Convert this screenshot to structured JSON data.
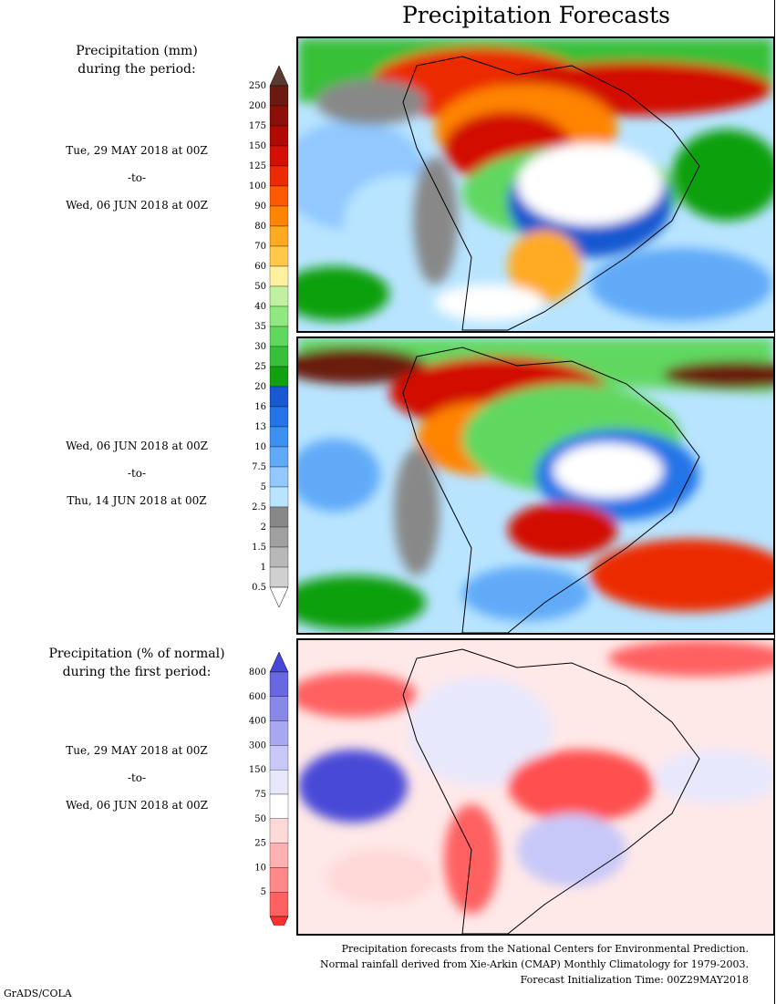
{
  "title": "Precipitation Forecasts",
  "section1": {
    "heading_line1": "Precipitation (mm)",
    "heading_line2": "during the period:",
    "period1_start": "Tue, 29 MAY 2018 at 00Z",
    "period1_to": "-to-",
    "period1_end": "Wed, 06 JUN 2018 at 00Z",
    "period2_start": "Wed, 06 JUN 2018 at 00Z",
    "period2_to": "-to-",
    "period2_end": "Thu, 14 JUN 2018 at 00Z"
  },
  "section2": {
    "heading_line1": "Precipitation (% of normal)",
    "heading_line2": "during the first period:",
    "period_start": "Tue, 29 MAY 2018 at 00Z",
    "period_to": "-to-",
    "period_end": "Wed, 06 JUN 2018 at 00Z"
  },
  "mm_scale": {
    "labels": [
      "250",
      "200",
      "175",
      "150",
      "125",
      "100",
      "90",
      "80",
      "70",
      "60",
      "50",
      "40",
      "35",
      "30",
      "25",
      "20",
      "16",
      "13",
      "10",
      "7.5",
      "5",
      "2.5",
      "2",
      "1.5",
      "1",
      "0.5"
    ],
    "colors": [
      "#6b1a10",
      "#8c1008",
      "#b00a05",
      "#d21005",
      "#ec2b05",
      "#ff5a00",
      "#ff8400",
      "#ffaa20",
      "#ffc84a",
      "#fff0a0",
      "#c0f0a0",
      "#90e880",
      "#60d860",
      "#38c038",
      "#10a010",
      "#1858d0",
      "#2474e8",
      "#3c90f0",
      "#60aaf8",
      "#90c8ff",
      "#b8e4ff",
      "#888888",
      "#a0a0a0",
      "#b8b8b8",
      "#d0d0d0"
    ],
    "top_color": "#5a3a30",
    "bottom_color": "#ffffff"
  },
  "pct_scale": {
    "labels": [
      "800",
      "600",
      "400",
      "300",
      "150",
      "75",
      "50",
      "25",
      "10",
      "5"
    ],
    "colors": [
      "#6868e0",
      "#8888e8",
      "#a8a8f0",
      "#c8c8f8",
      "#e8e8fc",
      "#ffffff",
      "#ffd8d8",
      "#ffb0b0",
      "#ff8888",
      "#ff6060"
    ],
    "top_color": "#4848d8",
    "bottom_color": "#ff3030"
  },
  "footer": {
    "line1": "Precipitation forecasts from the National Centers for Environmental Prediction.",
    "line2": "Normal rainfall derived from Xie-Arkin (CMAP) Monthly Climatology for 1979-2003.",
    "line3": "Forecast Initialization Time: 00Z29MAY2018",
    "credit": "GrADS/COLA"
  }
}
